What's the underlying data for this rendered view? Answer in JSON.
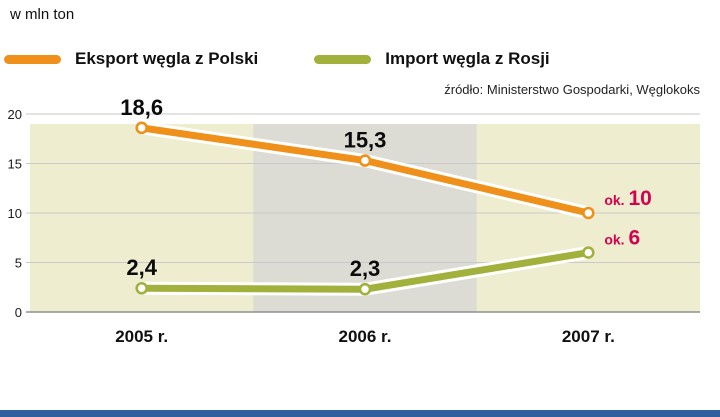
{
  "unit_label": "w mln ton",
  "source": "źródło: Ministerstwo Gospodarki, Węglokoks",
  "footer_bar_color": "#2e5e9e",
  "chart_data": {
    "type": "line",
    "title": "",
    "ylabel": "w mln ton",
    "categories": [
      "2005 r.",
      "2006 r.",
      "2007 r."
    ],
    "series": [
      {
        "name": "Eksport węgla z Polski",
        "color": "#ee9019",
        "values": [
          18.6,
          15.3,
          10
        ],
        "point_labels": [
          "18,6",
          "15,3",
          "ok. 10"
        ]
      },
      {
        "name": "Import węgla z Rosji",
        "color": "#a2b03c",
        "values": [
          2.4,
          2.3,
          6
        ],
        "point_labels": [
          "2,4",
          "2,3",
          "ok. 6"
        ]
      }
    ],
    "ylim": [
      0,
      20
    ],
    "yticks": [
      0,
      5,
      10,
      15,
      20
    ],
    "grid": true,
    "legend_position": "top-left",
    "plot_bg": "#eeedcf",
    "highlight_band": {
      "category": "2006 r.",
      "color": "#dcdcd4"
    },
    "approx_label_color": "#d4024e",
    "gridline_color": "#c9c9c9",
    "axis_line_color": "#8f8f8f"
  }
}
